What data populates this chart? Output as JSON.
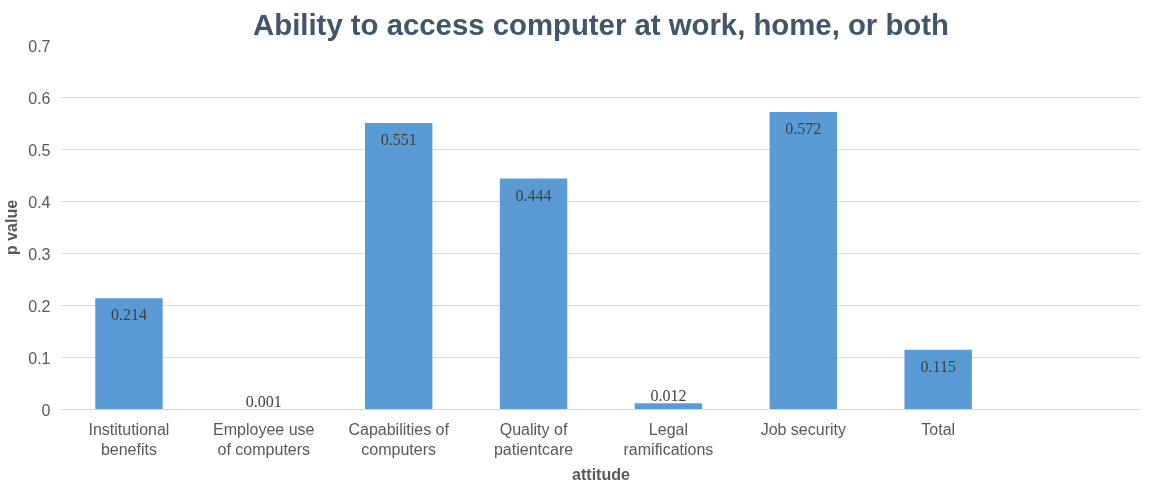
{
  "chart_data": {
    "type": "bar",
    "title": "Ability to access computer at work, home, or both",
    "xlabel": "attitude",
    "ylabel": "p value",
    "categories": [
      "Institutional\nbenefits",
      "Employee use\nof computers",
      "Capabilities of\ncomputers",
      "Quality of\npatientcare",
      "Legal\nramifications",
      "Job security",
      "Total",
      null
    ],
    "values": [
      0.214,
      0.001,
      0.551,
      0.444,
      0.012,
      0.572,
      0.115,
      null
    ],
    "color": "#5b9bd5",
    "ylim": [
      0,
      0.7
    ],
    "yticks": [
      0,
      0.1,
      0.2,
      0.3,
      0.4,
      0.5,
      0.6,
      0.7
    ],
    "grid": "y",
    "data_labels": true
  }
}
